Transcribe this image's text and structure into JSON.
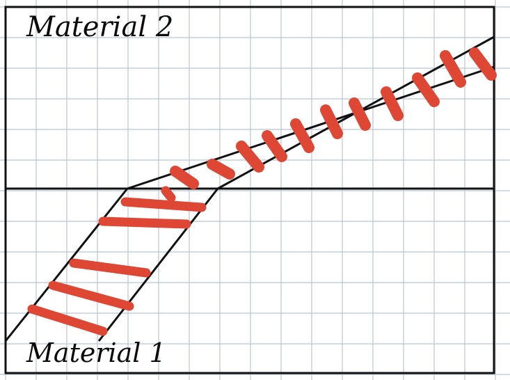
{
  "diagram": {
    "labels": {
      "top": "Material 2",
      "bottom": "Material 1"
    },
    "colors": {
      "background": "#ffffff",
      "grid": "#b9c4d8",
      "frame": "#111111",
      "hatch": "#dd4733"
    }
  }
}
